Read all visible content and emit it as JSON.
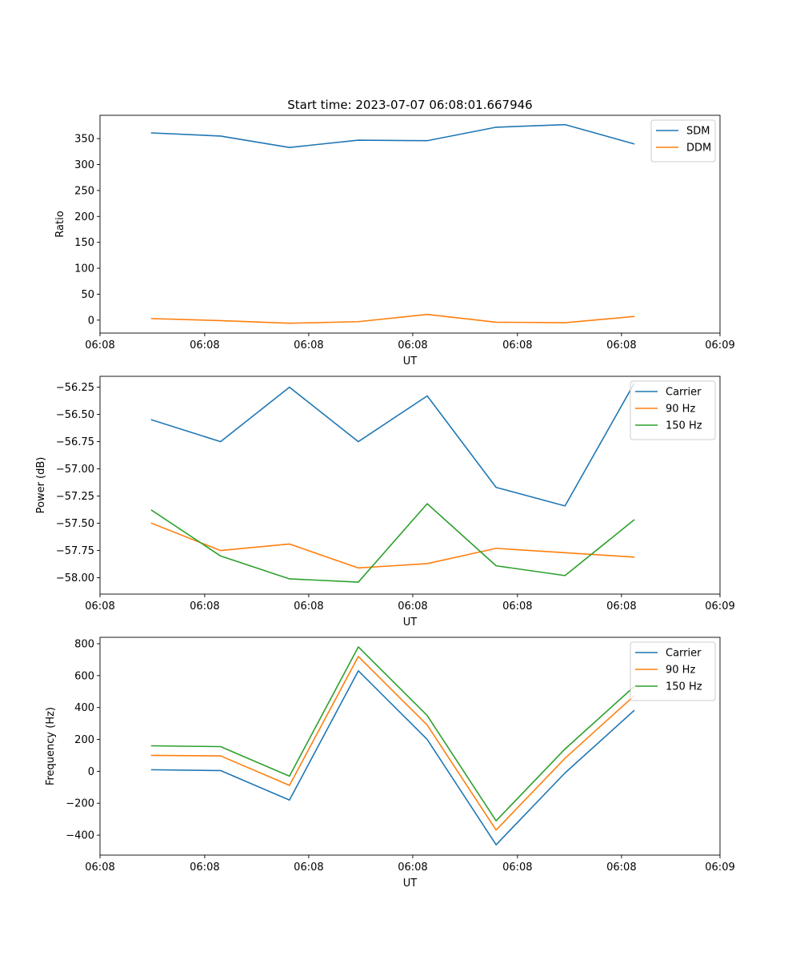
{
  "colors": {
    "c0": "#1f77b4",
    "c1": "#ff7f0e",
    "c2": "#2ca02c"
  },
  "chart_data": [
    {
      "type": "line",
      "title": "Start time: 2023-07-07 06:08:01.667946",
      "xlabel": "UT",
      "ylabel": "Ratio",
      "x": [
        1,
        2,
        3,
        4,
        5,
        6,
        7,
        8
      ],
      "xlim": [
        0.25,
        9.25
      ],
      "xticks": [
        0.25,
        1.77,
        3.28,
        4.79,
        6.31,
        7.82,
        9.25
      ],
      "xtick_labels": [
        "06:08",
        "06:08",
        "06:08",
        "06:08",
        "06:08",
        "06:08",
        "06:09"
      ],
      "ylim": [
        -25,
        395
      ],
      "yticks": [
        0,
        50,
        100,
        150,
        200,
        250,
        300,
        350
      ],
      "ytick_labels": [
        "0",
        "50",
        "100",
        "150",
        "200",
        "250",
        "300",
        "350"
      ],
      "legend_loc": "top-right",
      "series": [
        {
          "name": "SDM",
          "color": "c0",
          "values": [
            361,
            355,
            333,
            347,
            346,
            372,
            377,
            340
          ]
        },
        {
          "name": "DDM",
          "color": "c1",
          "values": [
            3,
            -1,
            -6,
            -3,
            11,
            -4,
            -5,
            7
          ]
        }
      ]
    },
    {
      "type": "line",
      "title": "",
      "xlabel": "UT",
      "ylabel": "Power (dB)",
      "x": [
        1,
        2,
        3,
        4,
        5,
        6,
        7,
        8
      ],
      "xlim": [
        0.25,
        9.25
      ],
      "xticks": [
        0.25,
        1.77,
        3.28,
        4.79,
        6.31,
        7.82,
        9.25
      ],
      "xtick_labels": [
        "06:08",
        "06:08",
        "06:08",
        "06:08",
        "06:08",
        "06:08",
        "06:09"
      ],
      "ylim": [
        -58.15,
        -56.15
      ],
      "yticks": [
        -58.0,
        -57.75,
        -57.5,
        -57.25,
        -57.0,
        -56.75,
        -56.5,
        -56.25
      ],
      "ytick_labels": [
        "−58.00",
        "−57.75",
        "−57.50",
        "−57.25",
        "−57.00",
        "−56.75",
        "−56.50",
        "−56.25"
      ],
      "legend_loc": "top-right",
      "series": [
        {
          "name": "Carrier",
          "color": "c0",
          "values": [
            -56.55,
            -56.75,
            -56.25,
            -56.75,
            -56.33,
            -57.17,
            -57.34,
            -56.22
          ]
        },
        {
          "name": "90 Hz",
          "color": "c1",
          "values": [
            -57.5,
            -57.75,
            -57.69,
            -57.91,
            -57.87,
            -57.73,
            -57.77,
            -57.81
          ]
        },
        {
          "name": "150 Hz",
          "color": "c2",
          "values": [
            -57.38,
            -57.8,
            -58.01,
            -58.04,
            -57.32,
            -57.89,
            -57.98,
            -57.47
          ]
        }
      ]
    },
    {
      "type": "line",
      "title": "",
      "xlabel": "UT",
      "ylabel": "Frequency (Hz)",
      "x": [
        1,
        2,
        3,
        4,
        5,
        6,
        7,
        8
      ],
      "xlim": [
        0.25,
        9.25
      ],
      "xticks": [
        0.25,
        1.77,
        3.28,
        4.79,
        6.31,
        7.82,
        9.25
      ],
      "xtick_labels": [
        "06:08",
        "06:08",
        "06:08",
        "06:08",
        "06:08",
        "06:08",
        "06:09"
      ],
      "ylim": [
        -525,
        840
      ],
      "yticks": [
        -400,
        -200,
        0,
        200,
        400,
        600,
        800
      ],
      "ytick_labels": [
        "−400",
        "−200",
        "0",
        "200",
        "400",
        "600",
        "800"
      ],
      "legend_loc": "top-right",
      "series": [
        {
          "name": "Carrier",
          "color": "c0",
          "values": [
            10,
            5,
            -180,
            630,
            200,
            -460,
            -10,
            380
          ]
        },
        {
          "name": "90 Hz",
          "color": "c1",
          "values": [
            100,
            97,
            -88,
            720,
            290,
            -368,
            82,
            472
          ]
        },
        {
          "name": "150 Hz",
          "color": "c2",
          "values": [
            160,
            155,
            -30,
            780,
            350,
            -310,
            140,
            530
          ]
        }
      ]
    }
  ]
}
